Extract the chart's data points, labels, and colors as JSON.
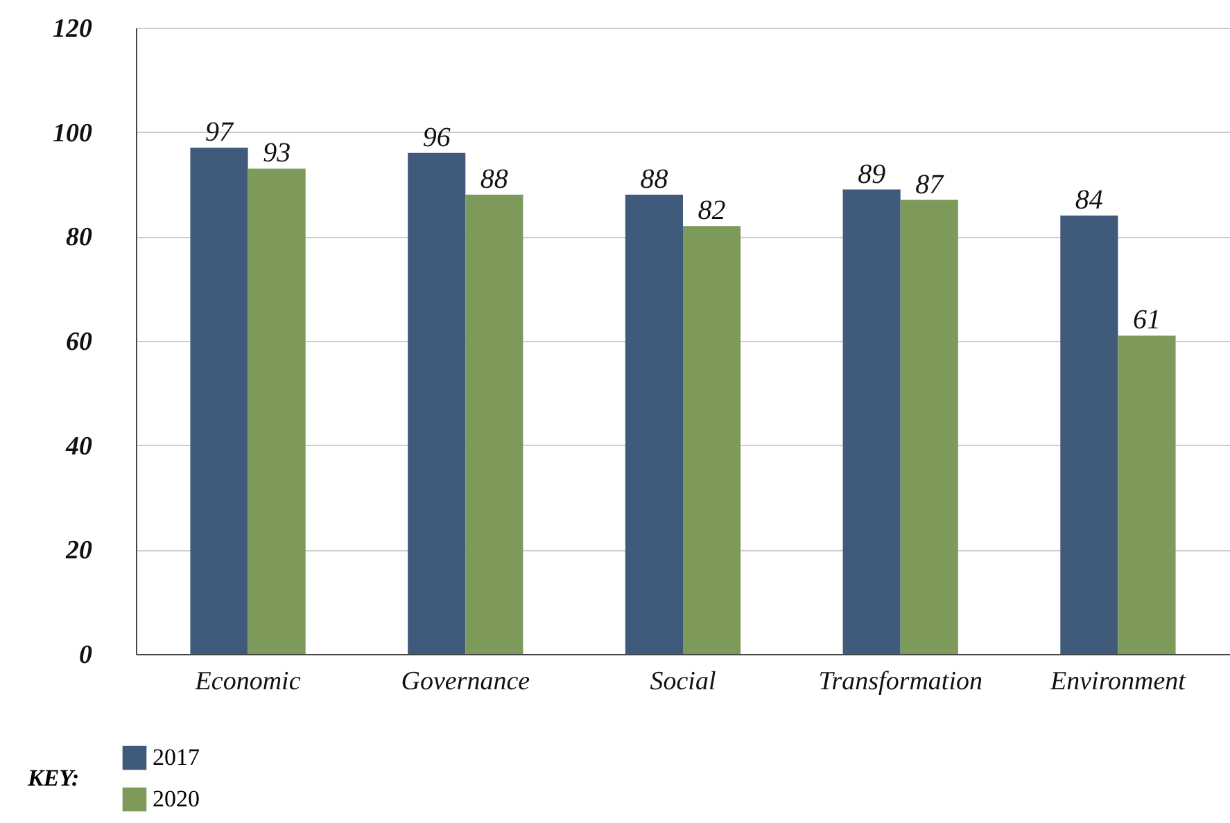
{
  "chart_data": {
    "type": "bar",
    "categories": [
      "Economic",
      "Governance",
      "Social",
      "Transformation",
      "Environment"
    ],
    "series": [
      {
        "name": "2017",
        "color": "#3f5a7a",
        "values": [
          97,
          96,
          88,
          89,
          84
        ]
      },
      {
        "name": "2020",
        "color": "#7d9a5a",
        "values": [
          93,
          88,
          82,
          87,
          61
        ]
      }
    ],
    "ylim": [
      0,
      120
    ],
    "yticks": [
      0,
      20,
      40,
      60,
      80,
      100,
      120
    ],
    "grid": "y",
    "data_labels": true,
    "legend": "bottom left",
    "legend_title": "KEY:"
  }
}
